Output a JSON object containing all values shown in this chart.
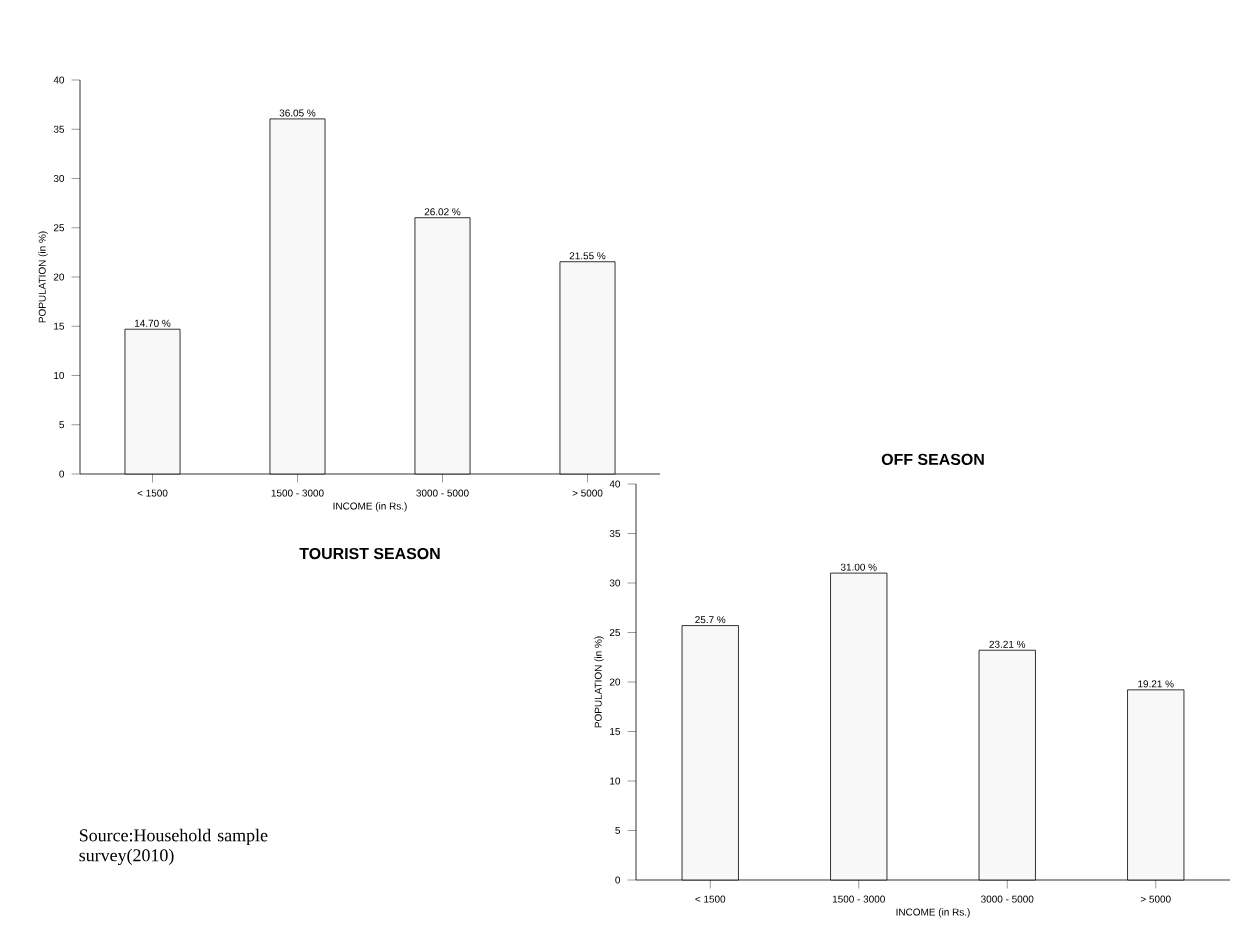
{
  "chart_data": [
    {
      "type": "bar",
      "title": "TOURIST SEASON",
      "xlabel": "INCOME (in Rs.)",
      "ylabel": "POPULATION (in %)",
      "categories": [
        "< 1500",
        "1500 - 3000",
        "3000 - 5000",
        "> 5000"
      ],
      "values": [
        14.7,
        36.05,
        26.02,
        21.55
      ],
      "value_labels": [
        "14.70 %",
        "36.05 %",
        "26.02 %",
        "21.55 %"
      ],
      "color": "#f8f8f8",
      "ylim": [
        0,
        40
      ],
      "yticks": [
        0,
        5,
        10,
        15,
        20,
        25,
        30,
        35,
        40
      ]
    },
    {
      "type": "bar",
      "title": "OFF SEASON",
      "xlabel": "INCOME (in Rs.)",
      "ylabel": "POPULATION (in %)",
      "categories": [
        "< 1500",
        "1500 - 3000",
        "3000 - 5000",
        "> 5000"
      ],
      "values": [
        25.7,
        31.0,
        23.21,
        19.21
      ],
      "value_labels": [
        "25.7 %",
        "31.00 %",
        "23.21 %",
        "19.21 %"
      ],
      "color": "#f8f8f8",
      "ylim": [
        0,
        40
      ],
      "yticks": [
        0,
        5,
        10,
        15,
        20,
        25,
        30,
        35,
        40
      ],
      "annotations": [
        "Source:Household sample survey(2010)"
      ]
    }
  ]
}
